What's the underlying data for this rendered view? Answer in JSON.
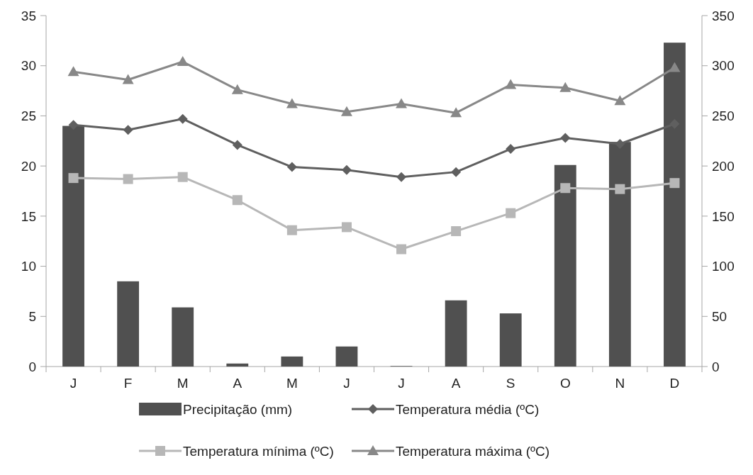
{
  "chart_data": {
    "type": "bar",
    "categories": [
      "J",
      "F",
      "M",
      "A",
      "M",
      "J",
      "J",
      "A",
      "S",
      "O",
      "N",
      "D"
    ],
    "series": [
      {
        "name": "Precipitação (mm)",
        "axis": "y2",
        "color": "#505050",
        "values": [
          240,
          85,
          59,
          3,
          10,
          20,
          0.5,
          66,
          53,
          201,
          224,
          323
        ]
      },
      {
        "name": "Temperatura média (ºC)",
        "type": "line",
        "color": "#5f5f5f",
        "marker": "diamond",
        "values": [
          24.1,
          23.6,
          24.7,
          22.1,
          19.9,
          19.6,
          18.9,
          19.4,
          21.7,
          22.8,
          22.2,
          24.2
        ]
      },
      {
        "name": "Temperatura mínima (ºC)",
        "type": "line",
        "color": "#b7b7b7",
        "marker": "square",
        "values": [
          18.8,
          18.7,
          18.9,
          16.6,
          13.6,
          13.9,
          11.7,
          13.5,
          15.3,
          17.8,
          17.7,
          18.3
        ]
      },
      {
        "name": "Temperatura máxima (ºC)",
        "type": "line",
        "color": "#888888",
        "marker": "triangle",
        "values": [
          29.4,
          28.6,
          30.4,
          27.6,
          26.2,
          25.4,
          26.2,
          25.3,
          28.1,
          27.8,
          26.5,
          29.8
        ]
      }
    ],
    "ylim": [
      0,
      35
    ],
    "yticks": [
      0,
      5,
      10,
      15,
      20,
      25,
      30,
      35
    ],
    "y2lim": [
      0,
      350
    ],
    "y2ticks": [
      0,
      50,
      100,
      150,
      200,
      250,
      300,
      350
    ],
    "legend": "bottom",
    "grid": false
  }
}
